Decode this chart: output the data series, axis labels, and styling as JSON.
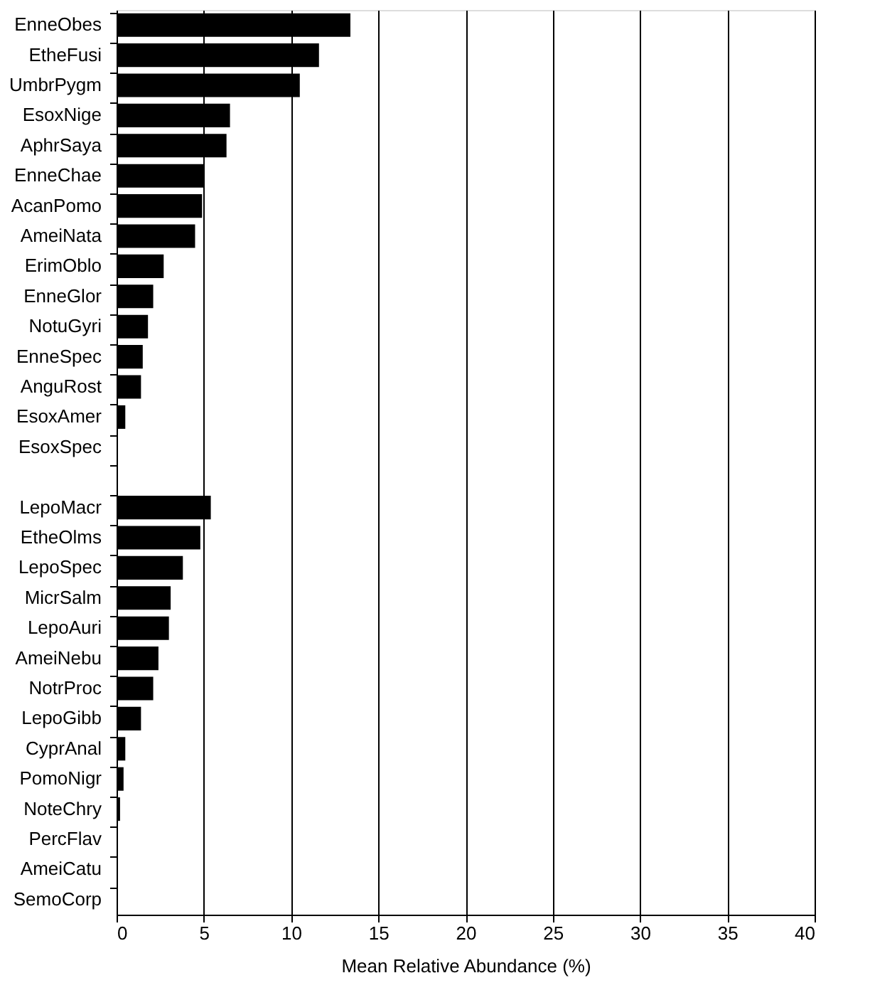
{
  "chart_data": {
    "type": "bar",
    "orientation": "horizontal",
    "xlabel": "Mean Relative Abundance (%)",
    "categories": [
      "EnneObes",
      "EtheFusi",
      "UmbrPygm",
      "EsoxNige",
      "AphrSaya",
      "EnneChae",
      "AcanPomo",
      "AmeiNata",
      "ErimOblo",
      "EnneGlor",
      "NotuGyri",
      "EnneSpec",
      "AnguRost",
      "EsoxAmer",
      "EsoxSpec",
      null,
      "LepoMacr",
      "EtheOlms",
      "LepoSpec",
      "MicrSalm",
      "LepoAuri",
      "AmeiNebu",
      "NotrProc",
      "LepoGibb",
      "CyprAnal",
      "PomoNigr",
      "NoteChry",
      "PercFlav",
      "AmeiCatu",
      "SemoCorp"
    ],
    "values": [
      13.4,
      11.6,
      10.5,
      6.5,
      6.3,
      5.0,
      4.9,
      4.5,
      2.7,
      2.1,
      1.8,
      1.5,
      1.4,
      0.5,
      0,
      null,
      5.4,
      4.8,
      3.8,
      3.1,
      3.0,
      2.4,
      2.1,
      1.4,
      0.5,
      0.4,
      0.2,
      0,
      0,
      0
    ],
    "color": "#000000",
    "xlim": [
      0,
      40
    ],
    "xticks": [
      0,
      5,
      10,
      15,
      20,
      25,
      30,
      35,
      40
    ],
    "grid": "x"
  }
}
